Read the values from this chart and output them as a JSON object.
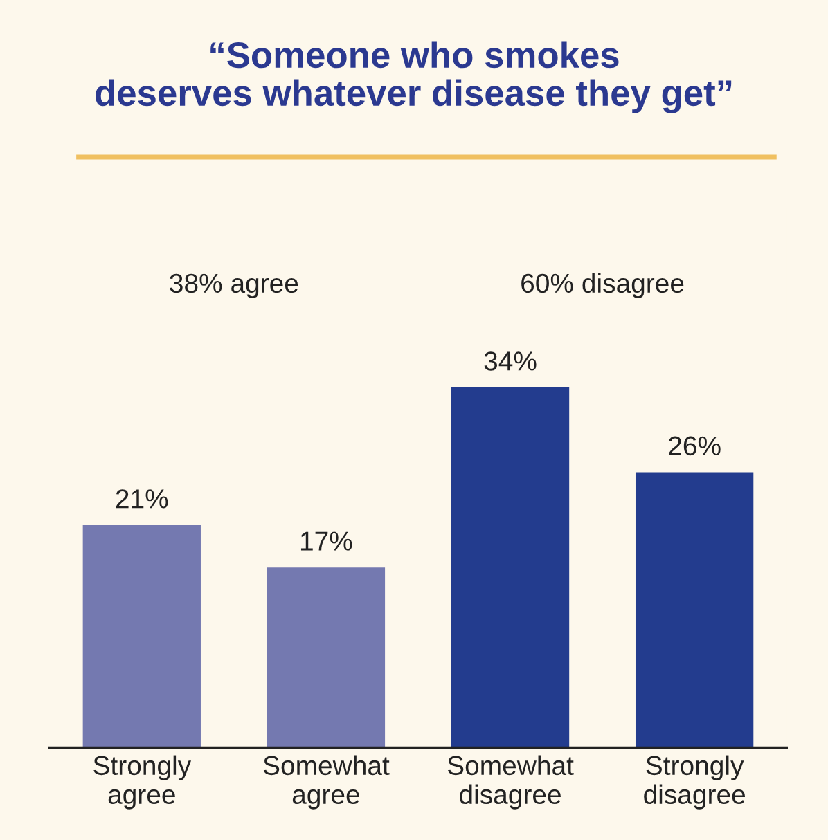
{
  "chart_data": {
    "type": "bar",
    "title": "“Someone who smokes\ndeserves whatever disease they get”",
    "categories": [
      "Strongly\nagree",
      "Somewhat\nagree",
      "Somewhat\ndisagree",
      "Strongly\ndisagree"
    ],
    "values": [
      21,
      17,
      34,
      26
    ],
    "colors": [
      "#7479b0",
      "#7479b0",
      "#233c8e",
      "#233c8e"
    ],
    "value_labels": [
      "21%",
      "17%",
      "34%",
      "26%"
    ],
    "annotations": [
      "38% agree",
      "60% disagree"
    ],
    "grid": false
  }
}
